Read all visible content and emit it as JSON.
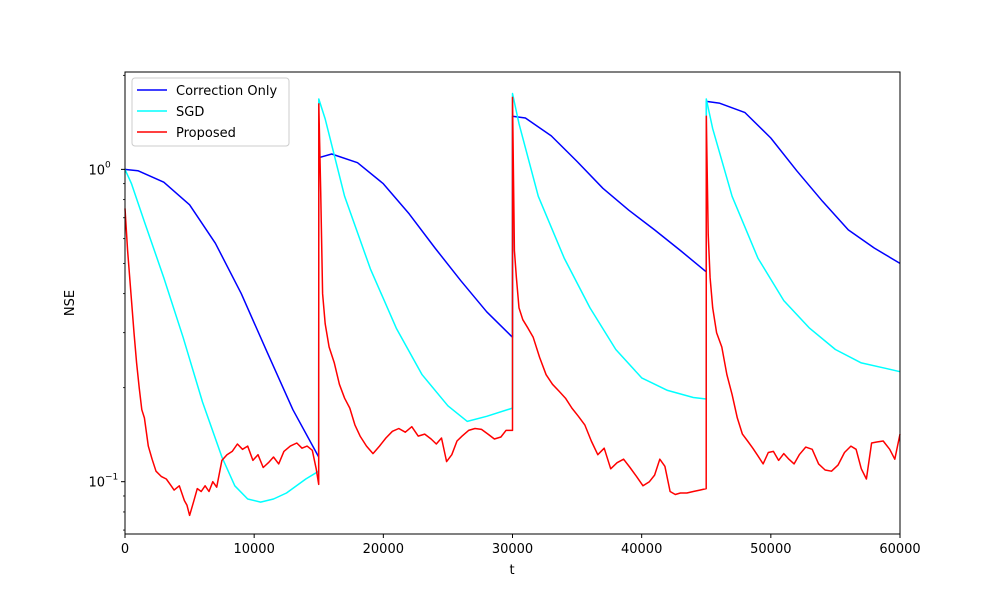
{
  "chart_data": {
    "type": "line",
    "title": "",
    "xlabel": "t",
    "ylabel": "NSE",
    "xlim": [
      0,
      60000
    ],
    "ylim": [
      0.068,
      2.05
    ],
    "y_scale": "log",
    "grid": false,
    "legend_position": "upper-left",
    "x_ticks": [
      {
        "value": 0,
        "label": "0"
      },
      {
        "value": 10000,
        "label": "10000"
      },
      {
        "value": 20000,
        "label": "20000"
      },
      {
        "value": 30000,
        "label": "30000"
      },
      {
        "value": 40000,
        "label": "40000"
      },
      {
        "value": 50000,
        "label": "50000"
      },
      {
        "value": 60000,
        "label": "60000"
      }
    ],
    "y_ticks": [
      {
        "value": 0.1,
        "label": "10",
        "exponent": "−1"
      },
      {
        "value": 1.0,
        "label": "10",
        "exponent": "0"
      }
    ],
    "series": [
      {
        "name": "Correction Only",
        "color": "#0000ff",
        "x": [
          0,
          1000,
          3000,
          5000,
          7000,
          9000,
          11000,
          13000,
          14999,
          15000,
          16000,
          18000,
          20000,
          22000,
          24000,
          26000,
          28000,
          29999,
          30000,
          31000,
          33000,
          35000,
          37000,
          39000,
          41000,
          43000,
          44999,
          45000,
          46000,
          48000,
          50000,
          52000,
          54000,
          56000,
          58000,
          60000
        ],
        "y": [
          1.0,
          0.99,
          0.91,
          0.77,
          0.58,
          0.4,
          0.26,
          0.17,
          0.12,
          1.09,
          1.12,
          1.05,
          0.9,
          0.72,
          0.56,
          0.44,
          0.35,
          0.29,
          1.48,
          1.46,
          1.28,
          1.06,
          0.87,
          0.74,
          0.64,
          0.55,
          0.47,
          1.65,
          1.63,
          1.52,
          1.26,
          0.99,
          0.79,
          0.64,
          0.56,
          0.5
        ]
      },
      {
        "name": "SGD",
        "color": "#00ffff",
        "x": [
          0,
          500,
          1500,
          3000,
          4500,
          6000,
          7500,
          8500,
          9500,
          10500,
          11500,
          12500,
          14000,
          14999,
          15000,
          15500,
          17000,
          19000,
          21000,
          23000,
          25000,
          26500,
          28000,
          29999,
          30000,
          30500,
          32000,
          34000,
          36000,
          38000,
          40000,
          42000,
          44000,
          44999,
          45000,
          45500,
          47000,
          49000,
          51000,
          53000,
          55000,
          57000,
          59000,
          60000
        ],
        "y": [
          1.0,
          0.9,
          0.68,
          0.45,
          0.29,
          0.18,
          0.12,
          0.097,
          0.088,
          0.086,
          0.088,
          0.092,
          0.102,
          0.108,
          1.68,
          1.45,
          0.82,
          0.48,
          0.31,
          0.22,
          0.175,
          0.156,
          0.162,
          0.172,
          1.75,
          1.4,
          0.82,
          0.52,
          0.36,
          0.265,
          0.215,
          0.196,
          0.186,
          0.184,
          1.68,
          1.35,
          0.82,
          0.52,
          0.38,
          0.31,
          0.265,
          0.24,
          0.23,
          0.225
        ]
      },
      {
        "name": "Proposed",
        "color": "#ff0000",
        "x": [
          0,
          200,
          500,
          700,
          900,
          1100,
          1300,
          1500,
          1800,
          2100,
          2400,
          2800,
          3200,
          3500,
          3800,
          4200,
          4600,
          4800,
          5000,
          5300,
          5600,
          5900,
          6200,
          6500,
          6800,
          7100,
          7500,
          7900,
          8300,
          8700,
          9100,
          9500,
          9900,
          10300,
          10700,
          11100,
          11500,
          11900,
          12300,
          12800,
          13300,
          13700,
          14100,
          14500,
          14800,
          14999,
          15000,
          15150,
          15300,
          15500,
          15800,
          16200,
          16600,
          17000,
          17400,
          17800,
          18200,
          18700,
          19200,
          19700,
          20200,
          20700,
          21200,
          21700,
          22200,
          22700,
          23200,
          23700,
          24100,
          24500,
          24900,
          25300,
          25700,
          26100,
          26600,
          27100,
          27600,
          28100,
          28600,
          29100,
          29500,
          29999,
          30000,
          30150,
          30300,
          30500,
          30800,
          31200,
          31600,
          32100,
          32600,
          33100,
          33600,
          34100,
          34600,
          35100,
          35600,
          36100,
          36600,
          37100,
          37600,
          38100,
          38600,
          39100,
          39600,
          40100,
          40600,
          41000,
          41400,
          41800,
          42200,
          42600,
          43000,
          43500,
          44000,
          44500,
          44999,
          45000,
          45150,
          45300,
          45500,
          45800,
          46200,
          46600,
          47000,
          47400,
          47800,
          48200,
          48600,
          49000,
          49400,
          49800,
          50200,
          50600,
          51000,
          51400,
          51800,
          52200,
          52700,
          53200,
          53700,
          54200,
          54700,
          55200,
          55700,
          56200,
          56600,
          57000,
          57400,
          57800,
          58200,
          58700,
          59200,
          59600,
          60000
        ],
        "y": [
          0.75,
          0.55,
          0.38,
          0.3,
          0.24,
          0.2,
          0.17,
          0.16,
          0.13,
          0.118,
          0.108,
          0.104,
          0.102,
          0.098,
          0.094,
          0.097,
          0.087,
          0.084,
          0.078,
          0.086,
          0.095,
          0.093,
          0.097,
          0.093,
          0.1,
          0.096,
          0.117,
          0.122,
          0.125,
          0.132,
          0.127,
          0.13,
          0.117,
          0.122,
          0.111,
          0.115,
          0.12,
          0.114,
          0.125,
          0.13,
          0.133,
          0.128,
          0.13,
          0.126,
          0.11,
          0.098,
          1.62,
          0.85,
          0.4,
          0.32,
          0.27,
          0.24,
          0.205,
          0.185,
          0.172,
          0.152,
          0.14,
          0.13,
          0.123,
          0.13,
          0.138,
          0.145,
          0.148,
          0.144,
          0.15,
          0.14,
          0.142,
          0.137,
          0.132,
          0.138,
          0.116,
          0.122,
          0.135,
          0.14,
          0.146,
          0.148,
          0.147,
          0.142,
          0.137,
          0.139,
          0.146,
          0.146,
          1.7,
          0.55,
          0.45,
          0.36,
          0.33,
          0.31,
          0.29,
          0.25,
          0.22,
          0.205,
          0.195,
          0.185,
          0.172,
          0.162,
          0.152,
          0.135,
          0.122,
          0.128,
          0.11,
          0.115,
          0.118,
          0.111,
          0.104,
          0.097,
          0.1,
          0.105,
          0.118,
          0.112,
          0.093,
          0.091,
          0.092,
          0.092,
          0.093,
          0.094,
          0.095,
          1.48,
          0.62,
          0.45,
          0.36,
          0.3,
          0.27,
          0.22,
          0.19,
          0.16,
          0.142,
          0.135,
          0.128,
          0.121,
          0.114,
          0.124,
          0.125,
          0.117,
          0.123,
          0.118,
          0.114,
          0.122,
          0.129,
          0.127,
          0.114,
          0.109,
          0.108,
          0.113,
          0.124,
          0.13,
          0.127,
          0.11,
          0.102,
          0.133,
          0.134,
          0.135,
          0.127,
          0.118,
          0.142
        ]
      }
    ]
  }
}
